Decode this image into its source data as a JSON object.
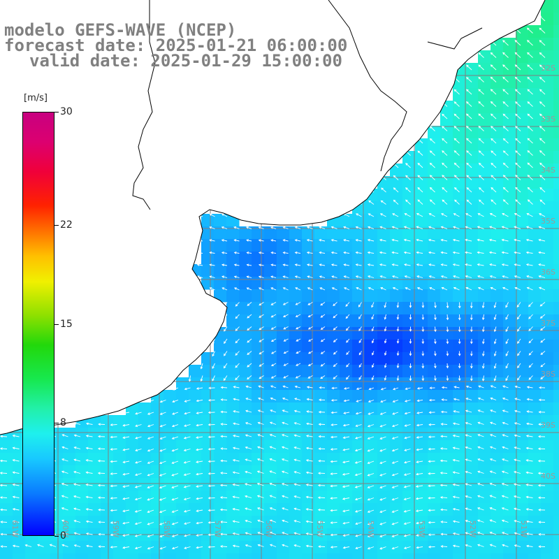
{
  "title": {
    "line1": "modelo GEFS-WAVE (NCEP)",
    "line2": "forecast date: 2025-01-21 06:00:00",
    "line3": "valid date: 2025-01-29 15:00:00"
  },
  "colorbar": {
    "unit": "[m/s]",
    "ticks": [
      "30",
      "22",
      "15",
      "8",
      "0"
    ],
    "tick_values": [
      30,
      22,
      15,
      8,
      0
    ],
    "min": 0,
    "max": 30
  },
  "map": {
    "lat_labels": [
      "32S",
      "33S",
      "34S",
      "35S",
      "36S",
      "37S",
      "38S",
      "39S",
      "40S"
    ],
    "lon_labels": [
      "61W",
      "60W",
      "59W",
      "58W",
      "57W",
      "56W",
      "55W",
      "54W",
      "53W",
      "52W",
      "51W"
    ],
    "land_color": "#ffffff",
    "grid_color": "#808080",
    "arrow_color": "#ffffff",
    "dominant_wind": "easterly to northeasterly, light winds"
  }
}
